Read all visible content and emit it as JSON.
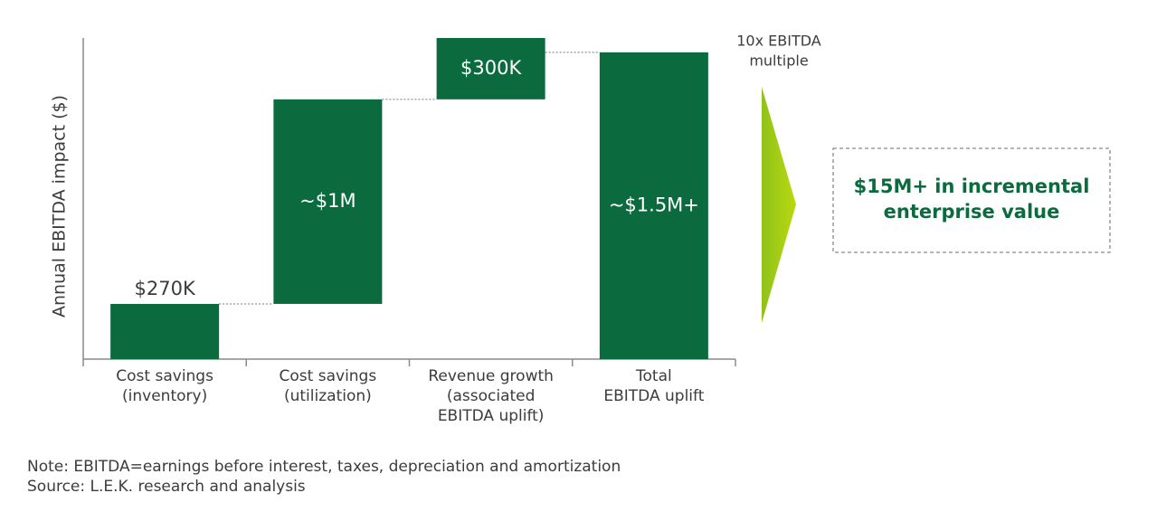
{
  "chart_data": {
    "type": "waterfall",
    "y_label": "Annual EBITDA impact ($)",
    "categories": [
      [
        "Cost savings",
        "(inventory)"
      ],
      [
        "Cost savings",
        "(utilization)"
      ],
      [
        "Revenue growth",
        "(associated",
        "EBITDA uplift)"
      ],
      [
        "Total",
        "EBITDA uplift"
      ]
    ],
    "values": [
      270000,
      1000000,
      300000,
      1500000
    ],
    "value_labels": [
      "$270K",
      "~$1M",
      "$300K",
      "~$1.5M+"
    ],
    "is_total": [
      false,
      false,
      false,
      true
    ],
    "color": "#0b6b3f",
    "annotation": [
      "10x EBITDA",
      "multiple"
    ],
    "callout": [
      "$15M+ in incremental",
      "enterprise value"
    ],
    "note": "Note: EBITDA=earnings before interest, taxes, depreciation and amortization",
    "source": "Source: L.E.K. research and analysis"
  }
}
